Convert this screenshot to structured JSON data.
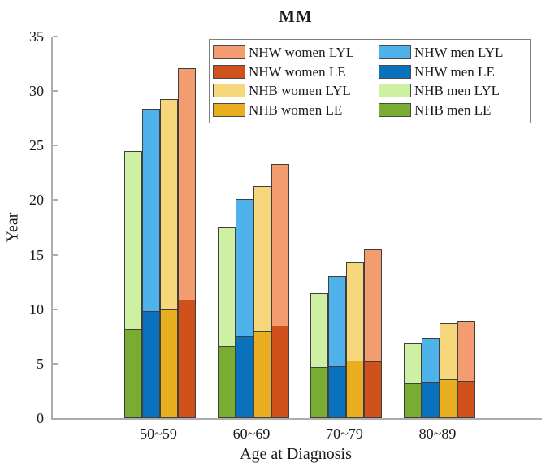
{
  "title": "MM",
  "axes": {
    "y_label": "Year",
    "x_label": "Age at Diagnosis",
    "y_ticks": [
      0,
      5,
      10,
      15,
      20,
      25,
      30,
      35
    ],
    "y_max": 35,
    "axis_color": "#adadad",
    "bar_edge_color": "#3f3f3f"
  },
  "legend": {
    "items": [
      {
        "label": "NHW women LYL",
        "color": "#F39C6F"
      },
      {
        "label": "NHW women LE",
        "color": "#D1511C"
      },
      {
        "label": "NHB women LYL",
        "color": "#F7D77C"
      },
      {
        "label": "NHB women LE",
        "color": "#EAAF20"
      },
      {
        "label": "NHW men LYL",
        "color": "#4FB2EB"
      },
      {
        "label": "NHW men LE",
        "color": "#0A72BC"
      },
      {
        "label": "NHB men LYL",
        "color": "#CEF0A2"
      },
      {
        "label": "NHB men LE",
        "color": "#79AC32"
      }
    ]
  },
  "chart_data": {
    "type": "bar",
    "variant": "grouped-stacked",
    "title": "MM",
    "xlabel": "Age at Diagnosis",
    "ylabel": "Year",
    "ylim": [
      0,
      35
    ],
    "grid": false,
    "legend_position": "top-right-inside",
    "categories": [
      "50~59",
      "60~69",
      "70~79",
      "80~89"
    ],
    "bars": [
      {
        "group": "NHB men",
        "le_label": "NHB men LE",
        "lyl_label": "NHB men LYL",
        "le_color": "#79AC32",
        "lyl_color": "#CEF0A2",
        "le": [
          8.2,
          6.6,
          4.7,
          3.2
        ],
        "lyl": [
          16.3,
          10.9,
          6.8,
          3.7
        ],
        "total": [
          24.5,
          17.5,
          11.5,
          6.9
        ]
      },
      {
        "group": "NHW men",
        "le_label": "NHW men LE",
        "lyl_label": "NHW men LYL",
        "le_color": "#0A72BC",
        "lyl_color": "#4FB2EB",
        "le": [
          9.8,
          7.5,
          4.8,
          3.3
        ],
        "lyl": [
          18.6,
          12.6,
          8.2,
          4.1
        ],
        "total": [
          28.4,
          20.1,
          13.0,
          7.4
        ]
      },
      {
        "group": "NHB women",
        "le_label": "NHB women LE",
        "lyl_label": "NHB women LYL",
        "le_color": "#EAAF20",
        "lyl_color": "#F7D77C",
        "le": [
          10.0,
          8.0,
          5.3,
          3.6
        ],
        "lyl": [
          19.3,
          13.3,
          9.0,
          5.1
        ],
        "total": [
          29.3,
          21.3,
          14.3,
          8.7
        ]
      },
      {
        "group": "NHW women",
        "le_label": "NHW women LE",
        "lyl_label": "NHW women LYL",
        "le_color": "#D1511C",
        "lyl_color": "#F39C6F",
        "le": [
          10.9,
          8.5,
          5.2,
          3.4
        ],
        "lyl": [
          21.2,
          14.8,
          10.3,
          5.5
        ],
        "total": [
          32.1,
          23.3,
          15.5,
          8.9
        ]
      }
    ]
  }
}
